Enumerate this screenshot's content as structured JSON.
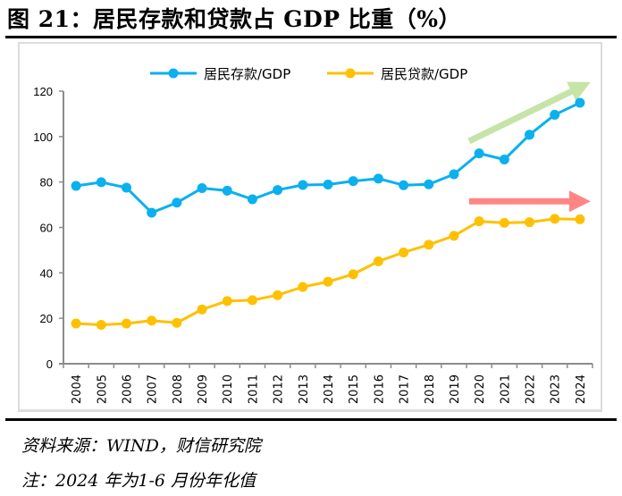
{
  "title": "图 21：居民存款和贷款占 GDP 比重（%）",
  "source": "资料来源：WIND，财信研究院",
  "remark": "注：2024 年为1-6 月份年化值",
  "colors": {
    "deposits": "#0BB0EE",
    "loans": "#FFC000",
    "arrow_up": "#C6E4A8",
    "arrow_flat": "#FF8585",
    "axis": "#8c8c8c"
  },
  "chart_data": {
    "type": "line",
    "title": "居民存款和贷款占 GDP 比重（%）",
    "xlabel": "",
    "ylabel": "",
    "x": [
      "2004",
      "2005",
      "2006",
      "2007",
      "2008",
      "2009",
      "2010",
      "2011",
      "2012",
      "2013",
      "2014",
      "2015",
      "2016",
      "2017",
      "2018",
      "2019",
      "2020",
      "2021",
      "2022",
      "2023",
      "2024"
    ],
    "ylim": [
      0,
      120
    ],
    "yticks": [
      0,
      20,
      40,
      60,
      80,
      100,
      120
    ],
    "grid": false,
    "legend_position": "top-center",
    "series": [
      {
        "name": "居民存款/GDP",
        "values": [
          78.3,
          79.9,
          77.5,
          66.5,
          70.9,
          77.3,
          76.2,
          72.4,
          76.5,
          78.7,
          78.9,
          80.4,
          81.5,
          78.6,
          79.0,
          83.4,
          92.6,
          89.9,
          100.8,
          109.6,
          114.9
        ]
      },
      {
        "name": "居民贷款/GDP",
        "values": [
          17.7,
          17.1,
          17.7,
          19.0,
          18.0,
          23.9,
          27.6,
          28.0,
          30.2,
          33.8,
          36.1,
          39.4,
          45.1,
          49.0,
          52.4,
          56.3,
          62.7,
          62.0,
          62.3,
          63.8,
          63.6
        ]
      }
    ],
    "annotations": [
      {
        "type": "arrow",
        "name": "deposits-trend-arrow",
        "direction": "up-right",
        "from_year": "2019",
        "to_year": "2024",
        "from_value": 98,
        "to_value": 124
      },
      {
        "type": "arrow",
        "name": "loans-trend-arrow",
        "direction": "right",
        "from_year": "2019",
        "to_year": "2024",
        "from_value": 71.5,
        "to_value": 71.5
      }
    ]
  }
}
